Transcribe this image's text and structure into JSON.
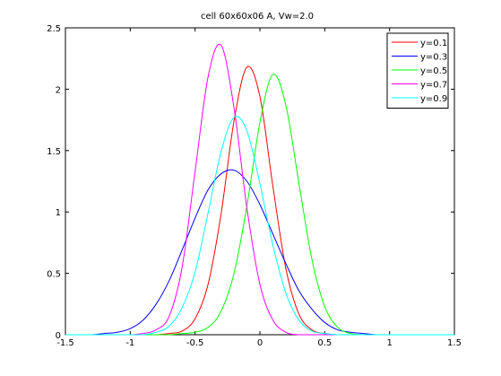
{
  "chart_data": {
    "type": "line",
    "title": "cell 60x60x06 A, Vw=2.0",
    "xlabel": "",
    "ylabel": "",
    "xlim": [
      -1.5,
      1.5
    ],
    "ylim": [
      0,
      2.5
    ],
    "xticks": [
      -1.5,
      -1,
      -0.5,
      0,
      0.5,
      1,
      1.5
    ],
    "xtick_labels": [
      "-1.5",
      "-1",
      "-0.5",
      "0",
      "0.5",
      "1",
      "1.5"
    ],
    "yticks": [
      0,
      0.5,
      1,
      1.5,
      2,
      2.5
    ],
    "ytick_labels": [
      "0",
      "0.5",
      "1",
      "1.5",
      "2",
      "2.5"
    ],
    "grid": false,
    "legend_position": "top-right",
    "x": [
      -1.5,
      -1.4,
      -1.3,
      -1.2,
      -1.1,
      -1.0,
      -0.9,
      -0.8,
      -0.7,
      -0.6,
      -0.5,
      -0.4,
      -0.3,
      -0.2,
      -0.1,
      0.0,
      0.1,
      0.2,
      0.3,
      0.4,
      0.5,
      0.6,
      0.7,
      0.8,
      0.9,
      1.0,
      1.1,
      1.2,
      1.3,
      1.4,
      1.5
    ],
    "series": [
      {
        "name": "y=0.1",
        "color": "#ff0000",
        "values": [
          0,
          0,
          0,
          0,
          0,
          0,
          0,
          0,
          0.01,
          0.03,
          0.13,
          0.41,
          0.98,
          1.74,
          2.18,
          1.94,
          1.21,
          0.54,
          0.17,
          0.04,
          0.01,
          0,
          0,
          0,
          0,
          0,
          0,
          0,
          0,
          0,
          0
        ]
      },
      {
        "name": "y=0.3",
        "color": "#0000ff",
        "values": [
          0,
          0,
          0,
          0.01,
          0.02,
          0.05,
          0.12,
          0.25,
          0.44,
          0.69,
          0.95,
          1.18,
          1.31,
          1.34,
          1.25,
          1.06,
          0.82,
          0.58,
          0.36,
          0.21,
          0.1,
          0.04,
          0.02,
          0.01,
          0,
          0,
          0,
          0,
          0,
          0,
          0
        ]
      },
      {
        "name": "y=0.5",
        "color": "#00ff00",
        "values": [
          0,
          0,
          0,
          0,
          0,
          0,
          0,
          0,
          0,
          0.01,
          0.02,
          0.06,
          0.19,
          0.5,
          1.05,
          1.73,
          2.12,
          1.87,
          1.24,
          0.62,
          0.23,
          0.06,
          0.01,
          0,
          0,
          0,
          0,
          0,
          0,
          0,
          0
        ]
      },
      {
        "name": "y=0.7",
        "color": "#ff00ff",
        "values": [
          0,
          0,
          0,
          0,
          0,
          0,
          0.01,
          0.04,
          0.15,
          0.55,
          1.33,
          2.1,
          2.36,
          1.85,
          1.03,
          0.41,
          0.12,
          0.02,
          0,
          0,
          0,
          0,
          0,
          0,
          0,
          0,
          0,
          0,
          0,
          0,
          0
        ]
      },
      {
        "name": "y=0.9",
        "color": "#00ffff",
        "values": [
          0,
          0,
          0,
          0,
          0,
          0,
          0,
          0.02,
          0.07,
          0.22,
          0.51,
          0.99,
          1.49,
          1.77,
          1.66,
          1.23,
          0.73,
          0.34,
          0.12,
          0.03,
          0.01,
          0,
          0,
          0,
          0,
          0,
          0,
          0,
          0,
          0,
          0
        ]
      }
    ]
  }
}
